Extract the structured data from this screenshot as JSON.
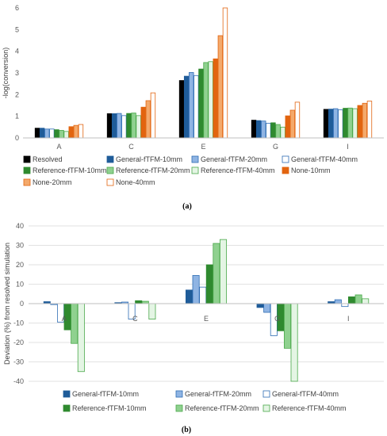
{
  "series_styles": [
    {
      "key": "resolved",
      "fill": "#000000",
      "stroke": "#000000"
    },
    {
      "key": "gen10",
      "fill": "#1f5c99",
      "stroke": "#1f5c99"
    },
    {
      "key": "gen20",
      "fill": "#8fb4e3",
      "stroke": "#2e6db4"
    },
    {
      "key": "gen40",
      "fill": "#ffffff",
      "stroke": "#2e6db4"
    },
    {
      "key": "ref10",
      "fill": "#2f8a2f",
      "stroke": "#2f8a2f"
    },
    {
      "key": "ref20",
      "fill": "#8fd18f",
      "stroke": "#4aa84a"
    },
    {
      "key": "ref40",
      "fill": "#e4f5e4",
      "stroke": "#4aa84a"
    },
    {
      "key": "none10",
      "fill": "#e2640f",
      "stroke": "#e2640f"
    },
    {
      "key": "none20",
      "fill": "#f4a96b",
      "stroke": "#e2640f"
    },
    {
      "key": "none40",
      "fill": "#ffffff",
      "stroke": "#e2640f"
    }
  ],
  "chart_data": [
    {
      "type": "bar",
      "caption": "(a)",
      "ylabel": "-log(conversion)",
      "xlabel": "",
      "ylim": [
        0,
        6
      ],
      "yticks": [
        "0",
        "1",
        "2",
        "3",
        "4",
        "5",
        "6"
      ],
      "grid": false,
      "legend_position": "bottom",
      "categories": [
        "A",
        "C",
        "E",
        "G",
        "I"
      ],
      "series": [
        {
          "name": "Resolved",
          "values": [
            0.45,
            1.12,
            2.65,
            0.82,
            1.32
          ]
        },
        {
          "name": "General-fTFM-10mm",
          "values": [
            0.45,
            1.12,
            2.85,
            0.8,
            1.33
          ]
        },
        {
          "name": "General-fTFM-20mm",
          "values": [
            0.41,
            1.13,
            3.02,
            0.78,
            1.35
          ]
        },
        {
          "name": "General-fTFM-40mm",
          "values": [
            0.41,
            1.03,
            2.88,
            0.68,
            1.3
          ]
        },
        {
          "name": "Reference-fTFM-10mm",
          "values": [
            0.38,
            1.13,
            3.18,
            0.7,
            1.37
          ]
        },
        {
          "name": "Reference-fTFM-20mm",
          "values": [
            0.35,
            1.15,
            3.48,
            0.62,
            1.38
          ]
        },
        {
          "name": "Reference-fTFM-40mm",
          "values": [
            0.3,
            1.03,
            3.52,
            0.5,
            1.35
          ]
        },
        {
          "name": "None-10mm",
          "values": [
            0.52,
            1.42,
            3.65,
            1.02,
            1.5
          ]
        },
        {
          "name": "None-20mm",
          "values": [
            0.58,
            1.72,
            4.72,
            1.28,
            1.6
          ]
        },
        {
          "name": "None-40mm",
          "values": [
            0.62,
            2.08,
            6.0,
            1.65,
            1.7
          ]
        }
      ],
      "legend": [
        "Resolved",
        "General-fTFM-10mm",
        "General-fTFM-20mm",
        "General-fTFM-40mm",
        "Reference-fTFM-10mm",
        "Reference-fTFM-20mm",
        "Reference-fTFM-40mm",
        "None-10mm",
        "None-20mm",
        "None-40mm"
      ]
    },
    {
      "type": "bar",
      "caption": "(b)",
      "ylabel": "Deviation (%) from resolved simulation",
      "xlabel": "",
      "ylim": [
        -40,
        40
      ],
      "yticks": [
        "40",
        "30",
        "20",
        "10",
        "0",
        "-10",
        "-20",
        "-30",
        "-40"
      ],
      "grid": true,
      "legend_position": "bottom",
      "categories": [
        "A",
        "C",
        "E",
        "G",
        "I"
      ],
      "series": [
        {
          "name": "General-fTFM-10mm",
          "values": [
            1.0,
            0.5,
            7.0,
            -2.0,
            1.0
          ]
        },
        {
          "name": "General-fTFM-20mm",
          "values": [
            -0.5,
            0.8,
            14.5,
            -4.5,
            2.0
          ]
        },
        {
          "name": "General-fTFM-40mm",
          "values": [
            -9.5,
            -8.0,
            8.5,
            -16.5,
            -1.5
          ]
        },
        {
          "name": "Reference-fTFM-10mm",
          "values": [
            -13.5,
            1.5,
            20.0,
            -14.0,
            3.5
          ]
        },
        {
          "name": "Reference-fTFM-20mm",
          "values": [
            -20.5,
            1.2,
            31.0,
            -23.0,
            4.5
          ]
        },
        {
          "name": "Reference-fTFM-40mm",
          "values": [
            -35.0,
            -8.0,
            33.0,
            -40.0,
            2.5
          ]
        }
      ],
      "legend": [
        "General-fTFM-10mm",
        "General-fTFM-20mm",
        "General-fTFM-40mm",
        "Reference-fTFM-10mm",
        "Reference-fTFM-20mm",
        "Reference-fTFM-40mm"
      ]
    }
  ]
}
